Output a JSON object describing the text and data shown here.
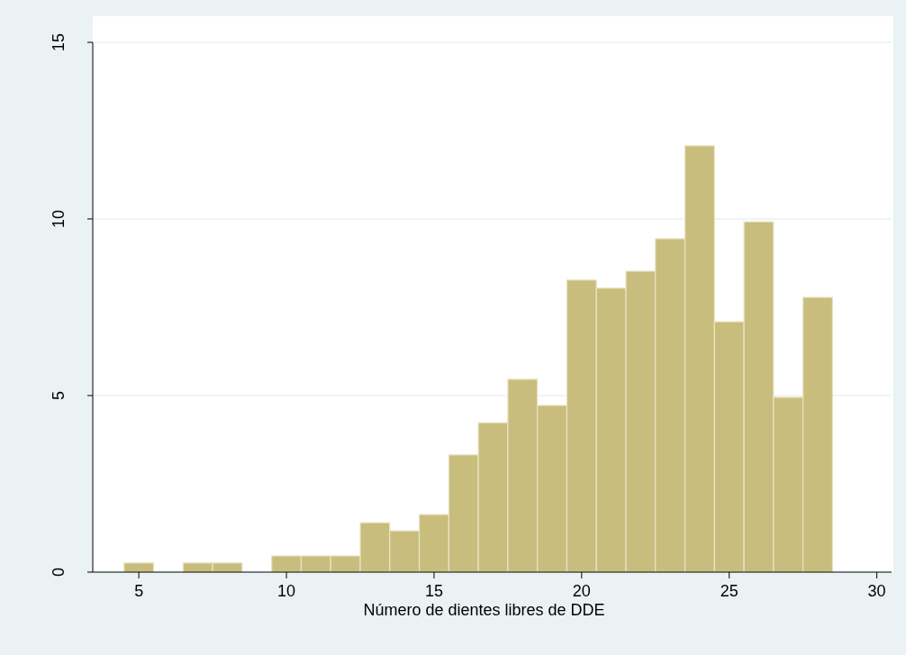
{
  "chart_data": {
    "type": "histogram",
    "xlabel": "Número de dientes libres de DDE",
    "bins": [
      4.5,
      5.5,
      6.5,
      7.5,
      8.5,
      9.5,
      10.5,
      11.5,
      12.5,
      13.5,
      14.5,
      15.5,
      16.5,
      17.5,
      18.5,
      19.5,
      20.5,
      21.5,
      22.5,
      23.5,
      24.5,
      25.5,
      26.5,
      27.5,
      28.5
    ],
    "values": [
      0.26,
      0,
      0.26,
      0.26,
      0,
      0.46,
      0.46,
      0.46,
      1.4,
      1.17,
      1.63,
      3.32,
      4.23,
      5.46,
      4.72,
      8.27,
      8.04,
      8.52,
      9.44,
      12.07,
      7.09,
      9.92,
      4.95,
      7.78
    ],
    "color": "#c9bd7d",
    "xlim": [
      3.5,
      30.5
    ],
    "xticks": [
      5,
      10,
      15,
      20,
      25,
      30
    ],
    "ylim": [
      0,
      15
    ],
    "yticks": [
      0,
      5,
      10,
      15
    ],
    "grid": "y"
  }
}
